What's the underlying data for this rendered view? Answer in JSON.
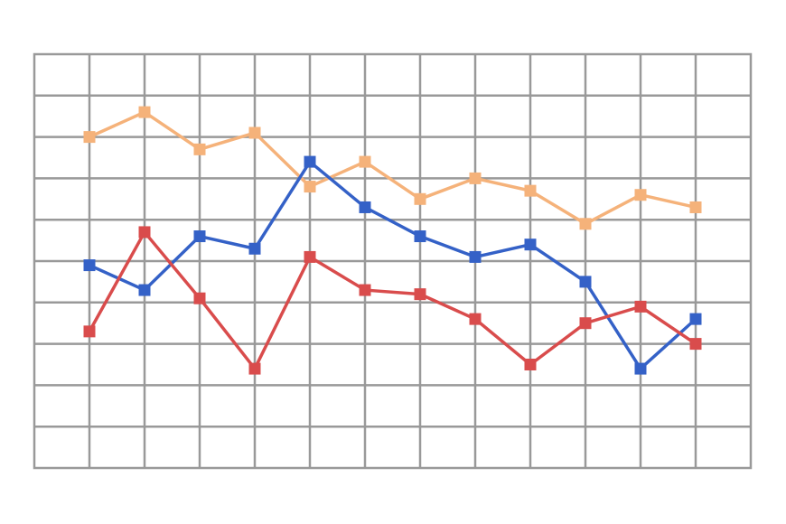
{
  "chart_data": {
    "type": "line",
    "x": [
      1,
      2,
      3,
      4,
      5,
      6,
      7,
      8,
      9,
      10,
      11,
      12
    ],
    "xlim": [
      0,
      13
    ],
    "ylim": [
      0,
      10
    ],
    "grid": true,
    "axes_visible": false,
    "legend": "none",
    "marker": "square",
    "series": [
      {
        "color": "#F5B27A",
        "values": [
          8.0,
          8.6,
          7.7,
          8.1,
          6.8,
          7.4,
          6.5,
          7.0,
          6.7,
          5.9,
          6.6,
          6.3
        ]
      },
      {
        "color": "#3461C7",
        "values": [
          4.9,
          4.3,
          5.6,
          5.3,
          7.4,
          6.3,
          5.6,
          5.1,
          5.4,
          4.5,
          2.4,
          3.6
        ]
      },
      {
        "color": "#D94C4C",
        "values": [
          3.3,
          5.7,
          4.1,
          2.4,
          5.1,
          4.3,
          4.2,
          3.6,
          2.5,
          3.5,
          3.9,
          3.0
        ]
      }
    ]
  }
}
